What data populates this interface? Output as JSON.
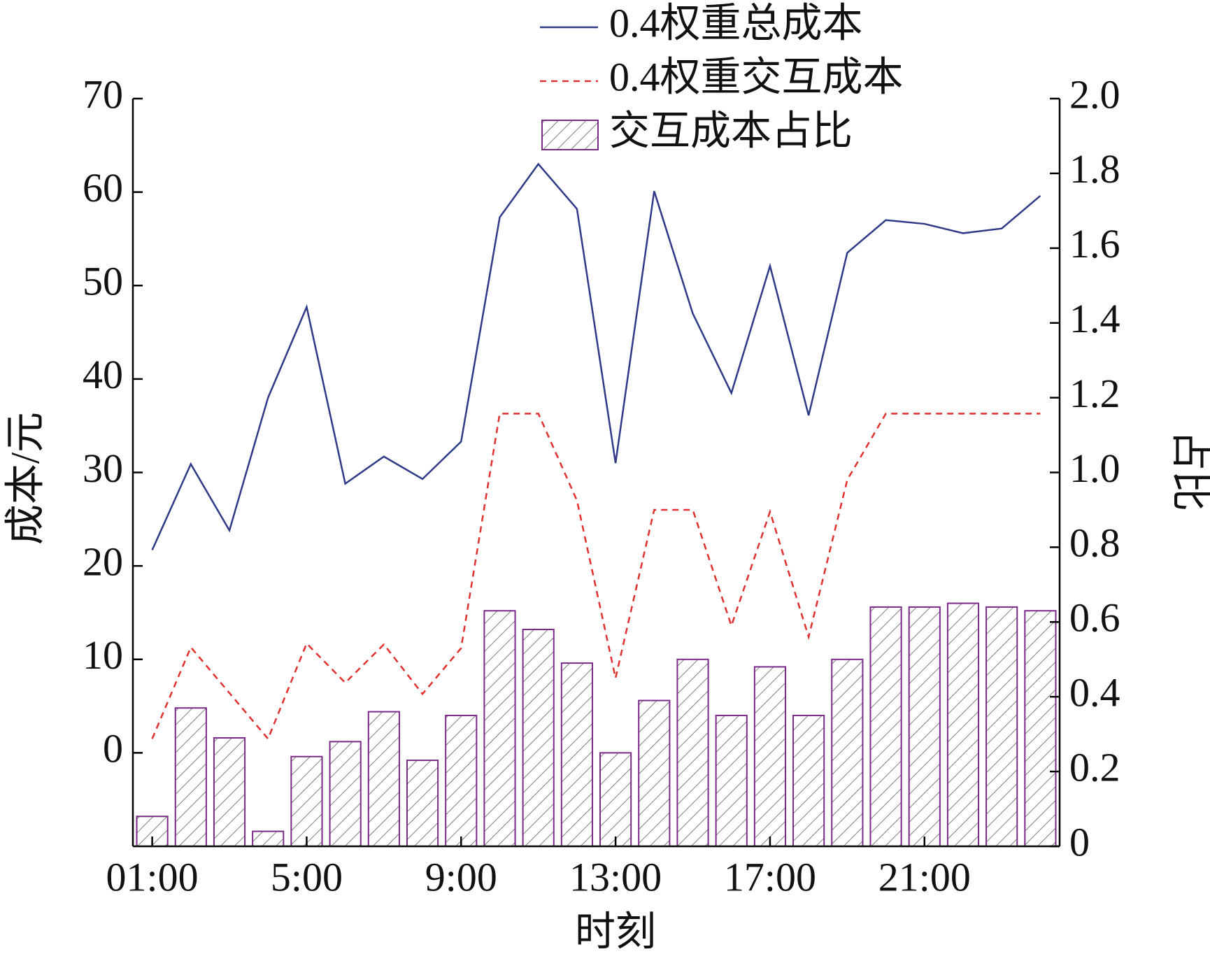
{
  "chart_data": {
    "type": "bar-line",
    "xlabel": "时刻",
    "ylabel": "成本/元",
    "y2label": "占比",
    "categories": [
      "01:00",
      null,
      null,
      null,
      "5:00",
      null,
      null,
      null,
      "9:00",
      null,
      null,
      null,
      "13:00",
      null,
      null,
      null,
      "17:00",
      null,
      null,
      null,
      "21:00",
      null,
      null,
      null
    ],
    "series": [
      {
        "name": "0.4权重总成本",
        "type": "line",
        "linestyle": "solid",
        "color": "#2e3a87",
        "values": [
          21.7,
          30.9,
          23.8,
          38.0,
          47.7,
          28.8,
          31.7,
          29.3,
          33.3,
          57.3,
          63.0,
          58.2,
          31.0,
          60.1,
          47.0,
          38.5,
          52.1,
          36.1,
          53.5,
          57.0,
          56.6,
          55.6,
          56.1,
          59.6
        ]
      },
      {
        "name": "0.4权重交互成本",
        "type": "line",
        "linestyle": "dashed",
        "color": "#e0312f",
        "values": [
          1.5,
          11.3,
          6.4,
          1.5,
          11.7,
          7.5,
          11.6,
          6.3,
          11.2,
          36.3,
          36.3,
          27.0,
          8.0,
          26.0,
          26.0,
          13.6,
          25.8,
          12.4,
          29.2,
          36.3,
          36.3,
          36.3,
          36.3,
          36.3
        ]
      },
      {
        "name": "交互成本占比",
        "type": "bar",
        "axis": "y2",
        "color": "#7b2a8a",
        "hatch": true,
        "values": [
          0.08,
          0.37,
          0.29,
          0.04,
          0.24,
          0.28,
          0.36,
          0.23,
          0.35,
          0.63,
          0.58,
          0.49,
          0.25,
          0.39,
          0.5,
          0.35,
          0.48,
          0.35,
          0.5,
          0.64,
          0.64,
          0.65,
          0.64,
          0.63
        ]
      }
    ],
    "ylim": [
      -10,
      70
    ],
    "yticks": [
      0,
      10,
      20,
      30,
      40,
      50,
      60,
      70
    ],
    "y2lim": [
      0,
      2
    ],
    "y2ticks": [
      0,
      0.2,
      0.4,
      0.6,
      0.8,
      {
        "value": 1,
        "label": "1.0"
      },
      1.2,
      1.4,
      1.6,
      1.8,
      {
        "value": 2,
        "label": "2.0"
      }
    ]
  }
}
